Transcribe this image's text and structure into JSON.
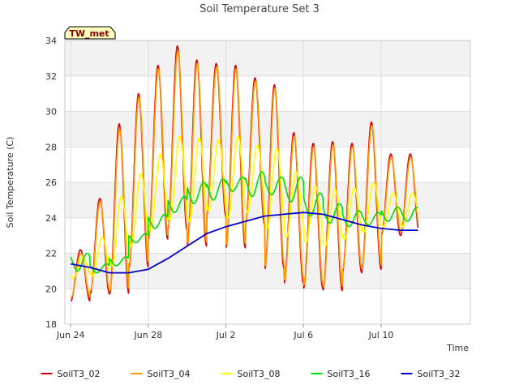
{
  "chart_data": {
    "type": "line",
    "title": "Soil Temperature Set 3",
    "xlabel": "Time",
    "ylabel": "Soil Temperature (C)",
    "badge": "TW_met",
    "xlim": [
      -0.3,
      20.6
    ],
    "ylim": [
      18,
      34
    ],
    "x_unit": "days since Jun 24",
    "x_ticks": [
      {
        "value": 0,
        "label": "Jun 24"
      },
      {
        "value": 4,
        "label": "Jun 28"
      },
      {
        "value": 8,
        "label": "Jul 2"
      },
      {
        "value": 12,
        "label": "Jul 6"
      },
      {
        "value": 16,
        "label": "Jul 10"
      }
    ],
    "y_ticks": [
      18,
      20,
      22,
      24,
      26,
      28,
      30,
      32,
      34
    ],
    "grid": true,
    "legend_position": "bottom",
    "series": [
      {
        "name": "SoilT3_02",
        "color": "#dd0000",
        "daily_max": [
          22.2,
          25.1,
          29.3,
          31.0,
          32.6,
          33.7,
          32.9,
          32.7,
          32.6,
          31.9,
          31.5,
          28.8,
          28.2,
          28.3,
          28.2,
          29.4,
          27.6
        ],
        "daily_min": [
          19.3,
          19.7,
          19.7,
          21.2,
          22.8,
          23.3,
          22.4,
          24.1,
          22.3,
          23.6,
          21.1,
          20.3,
          20.0,
          19.9,
          20.9,
          21.1,
          23.0
        ]
      },
      {
        "name": "SoilT3_04",
        "color": "#ff9900",
        "daily_max": [
          22.0,
          24.9,
          29.0,
          30.8,
          32.4,
          33.4,
          32.7,
          32.5,
          32.4,
          31.7,
          31.3,
          28.6,
          28.0,
          28.1,
          28.0,
          29.2,
          27.4
        ],
        "daily_min": [
          19.5,
          19.9,
          19.9,
          21.4,
          23.0,
          23.5,
          22.6,
          24.3,
          22.5,
          23.8,
          21.3,
          20.5,
          20.2,
          20.1,
          21.1,
          21.3,
          23.2
        ]
      },
      {
        "name": "SoilT3_08",
        "color": "#ffff00",
        "daily_max": [
          21.8,
          22.9,
          25.2,
          26.5,
          27.6,
          28.6,
          28.5,
          28.4,
          28.6,
          28.1,
          27.9,
          26.6,
          25.8,
          25.6,
          25.7,
          26.0,
          25.4
        ],
        "daily_min": [
          20.6,
          20.7,
          21.3,
          22.4,
          23.3,
          23.9,
          23.8,
          24.4,
          24.0,
          24.3,
          23.4,
          22.9,
          22.6,
          22.4,
          22.8,
          23.2,
          23.5
        ]
      },
      {
        "name": "SoilT3_16",
        "color": "#00dd00",
        "daily_max": [
          22.0,
          21.4,
          21.8,
          23.1,
          24.2,
          25.2,
          26.0,
          26.2,
          26.3,
          26.6,
          26.3,
          26.3,
          25.4,
          24.8,
          24.4,
          24.3,
          24.6
        ],
        "daily_min": [
          21.0,
          20.9,
          21.3,
          22.6,
          23.4,
          24.3,
          24.8,
          25.0,
          25.5,
          25.2,
          25.3,
          24.9,
          24.1,
          23.7,
          23.5,
          23.6,
          23.8
        ]
      },
      {
        "name": "SoilT3_32",
        "color": "#0000cc",
        "x": [
          0,
          1,
          2,
          3,
          4,
          5,
          6,
          7,
          8,
          9,
          10,
          11,
          12,
          13,
          14,
          15,
          16,
          17,
          17.9
        ],
        "y": [
          21.4,
          21.2,
          20.9,
          20.9,
          21.1,
          21.7,
          22.4,
          23.1,
          23.5,
          23.8,
          24.1,
          24.2,
          24.3,
          24.2,
          23.9,
          23.6,
          23.4,
          23.3,
          23.3
        ]
      }
    ]
  }
}
